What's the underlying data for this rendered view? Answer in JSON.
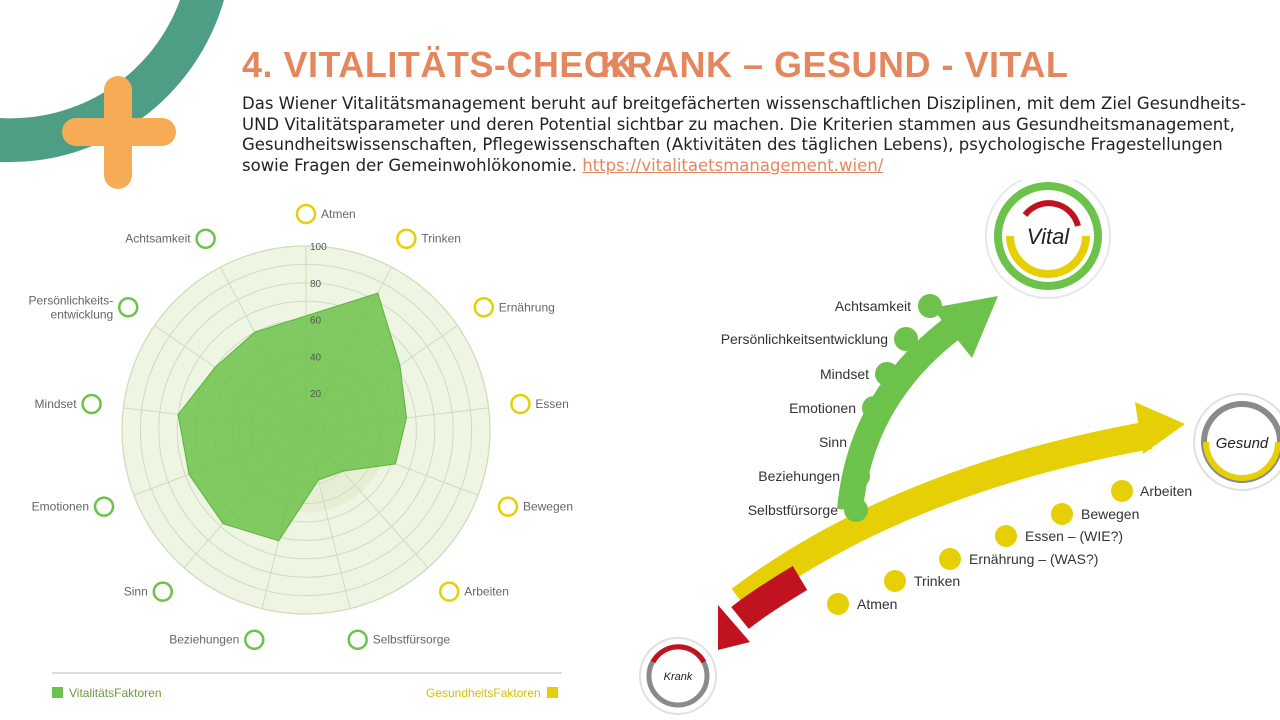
{
  "title": {
    "left": "4. VITALITÄTS-CHECK",
    "right": "KRANK – GESUND - VITAL"
  },
  "intro": {
    "text": "Das Wiener Vitalitätsmanagement beruht auf breitgefächerten wissenschaftlichen Disziplinen, mit dem Ziel Gesundheits- UND Vitalitätsparameter und deren Potential sichtbar zu machen. Die Kriterien stammen aus Gesundheitsmanagement, Gesundheitswissenschaften, Pflegewissenschaften (Aktivitäten des täglichen Lebens), psychologische Fragestellungen sowie Fragen der Gemeinwohlökonomie.",
    "link": "https://vitalitaetsmanagement.wien/"
  },
  "colors": {
    "title": "#E4875F",
    "teal": "#4E9E86",
    "orange_plus": "#F5AC54",
    "green": "#6CC24A",
    "yellow": "#E6CF05",
    "red": "#C1121F"
  },
  "chart_data": {
    "type": "radar",
    "ylim": [
      0,
      100
    ],
    "ticks": [
      "20",
      "40",
      "60",
      "80",
      "100"
    ],
    "axes": [
      "Atmen",
      "Trinken",
      "Ernährung",
      "Essen",
      "Bewegen",
      "Arbeiten",
      "Selbstfürsorge",
      "Beziehungen",
      "Sinn",
      "Emotionen",
      "Mindset",
      "Persönlichkeits-entwicklung",
      "Achtsamkeit"
    ],
    "vital_axes": [
      "Achtsamkeit",
      "Persönlichkeits-entwicklung",
      "Mindset",
      "Emotionen",
      "Sinn",
      "Beziehungen",
      "Selbstfürsorge"
    ],
    "series": [
      {
        "name": "VitalitätsFaktoren",
        "values": [
          62,
          84,
          62,
          55,
          52,
          30,
          28,
          62,
          68,
          68,
          70,
          60,
          60
        ]
      }
    ],
    "legend": [
      "VitalitätsFaktoren",
      "GesundheitsFaktoren"
    ]
  },
  "diagram": {
    "badges": {
      "vital": "Vital",
      "gesund": "Gesund",
      "krank": "Krank"
    },
    "vital_items": [
      "Achtsamkeit",
      "Persönlichkeitsentwicklung",
      "Mindset",
      "Emotionen",
      "Sinn",
      "Beziehungen",
      "Selbstfürsorge"
    ],
    "health_items": [
      "Arbeiten",
      "Bewegen",
      "Essen – (WIE?)",
      "Ernährung – (WAS?)",
      "Trinken",
      "Atmen"
    ]
  }
}
